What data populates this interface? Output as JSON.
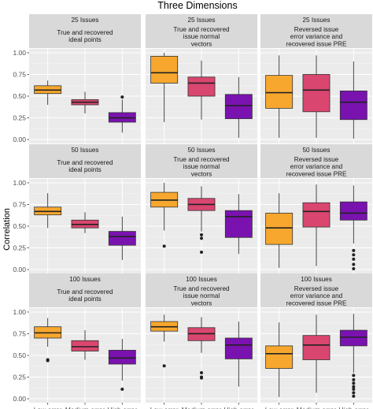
{
  "chart_data": {
    "type": "boxplot",
    "title": "Three Dimensions",
    "ylabel": "Correlation",
    "xlabel": "",
    "ylim": [
      0,
      1.0
    ],
    "y_ticks": [
      "0.00",
      "0.25",
      "0.50",
      "0.75",
      "1.00"
    ],
    "categories": [
      "Low error",
      "Medium error",
      "High error"
    ],
    "colors": [
      "#F7A72E",
      "#D9466F",
      "#7A12B0"
    ],
    "row_labels": [
      "25 Issues",
      "50 Issues",
      "100 Issues"
    ],
    "column_titles": [
      [
        "True and recovered",
        "ideal points"
      ],
      [
        "True and recovered",
        "issue normal",
        "vectors"
      ],
      [
        "Reversed issue",
        "error variance and",
        "recovered issue PRE"
      ]
    ],
    "panels": [
      {
        "row": "25 Issues",
        "column": 0,
        "boxes": [
          {
            "category": "Low error",
            "low": 0.4,
            "q1": 0.53,
            "median": 0.57,
            "q3": 0.62,
            "high": 0.68,
            "outliers": []
          },
          {
            "category": "Medium error",
            "low": 0.3,
            "q1": 0.4,
            "median": 0.43,
            "q3": 0.46,
            "high": 0.55,
            "outliers": []
          },
          {
            "category": "High error",
            "low": 0.08,
            "q1": 0.2,
            "median": 0.25,
            "q3": 0.31,
            "high": 0.46,
            "outliers": [
              0.49
            ]
          }
        ]
      },
      {
        "row": "25 Issues",
        "column": 1,
        "boxes": [
          {
            "category": "Low error",
            "low": 0.2,
            "q1": 0.65,
            "median": 0.77,
            "q3": 0.96,
            "high": 1.0,
            "outliers": []
          },
          {
            "category": "Medium error",
            "low": 0.23,
            "q1": 0.5,
            "median": 0.65,
            "q3": 0.72,
            "high": 0.91,
            "outliers": []
          },
          {
            "category": "High error",
            "low": 0.02,
            "q1": 0.24,
            "median": 0.39,
            "q3": 0.52,
            "high": 0.72,
            "outliers": []
          }
        ]
      },
      {
        "row": "25 Issues",
        "column": 2,
        "boxes": [
          {
            "category": "Low error",
            "low": 0.02,
            "q1": 0.36,
            "median": 0.54,
            "q3": 0.74,
            "high": 0.97,
            "outliers": []
          },
          {
            "category": "Medium error",
            "low": 0.02,
            "q1": 0.32,
            "median": 0.57,
            "q3": 0.75,
            "high": 0.97,
            "outliers": []
          },
          {
            "category": "High error",
            "low": 0.01,
            "q1": 0.23,
            "median": 0.43,
            "q3": 0.56,
            "high": 0.9,
            "outliers": []
          }
        ]
      },
      {
        "row": "50 Issues",
        "column": 0,
        "boxes": [
          {
            "category": "Low error",
            "low": 0.48,
            "q1": 0.63,
            "median": 0.67,
            "q3": 0.72,
            "high": 0.88,
            "outliers": []
          },
          {
            "category": "Medium error",
            "low": 0.42,
            "q1": 0.48,
            "median": 0.52,
            "q3": 0.57,
            "high": 0.66,
            "outliers": []
          },
          {
            "category": "High error",
            "low": 0.11,
            "q1": 0.28,
            "median": 0.38,
            "q3": 0.44,
            "high": 0.61,
            "outliers": []
          }
        ]
      },
      {
        "row": "50 Issues",
        "column": 1,
        "boxes": [
          {
            "category": "Low error",
            "low": 0.45,
            "q1": 0.72,
            "median": 0.8,
            "q3": 0.89,
            "high": 1.0,
            "outliers": [
              0.27
            ]
          },
          {
            "category": "Medium error",
            "low": 0.44,
            "q1": 0.68,
            "median": 0.75,
            "q3": 0.82,
            "high": 0.96,
            "outliers": [
              0.4,
              0.36,
              0.2
            ]
          },
          {
            "category": "High error",
            "low": 0.18,
            "q1": 0.37,
            "median": 0.61,
            "q3": 0.68,
            "high": 0.87,
            "outliers": []
          }
        ]
      },
      {
        "row": "50 Issues",
        "column": 2,
        "boxes": [
          {
            "category": "Low error",
            "low": 0.02,
            "q1": 0.29,
            "median": 0.48,
            "q3": 0.65,
            "high": 0.88,
            "outliers": []
          },
          {
            "category": "Medium error",
            "low": 0.04,
            "q1": 0.49,
            "median": 0.67,
            "q3": 0.77,
            "high": 0.98,
            "outliers": []
          },
          {
            "category": "High error",
            "low": 0.3,
            "q1": 0.57,
            "median": 0.65,
            "q3": 0.78,
            "high": 0.97,
            "outliers": [
              0.22,
              0.17,
              0.12,
              0.06,
              0.01
            ]
          }
        ]
      },
      {
        "row": "100 Issues",
        "column": 0,
        "boxes": [
          {
            "category": "Low error",
            "low": 0.6,
            "q1": 0.7,
            "median": 0.76,
            "q3": 0.83,
            "high": 0.93,
            "outliers": [
              0.45,
              0.44
            ]
          },
          {
            "category": "Medium error",
            "low": 0.45,
            "q1": 0.55,
            "median": 0.6,
            "q3": 0.67,
            "high": 0.79,
            "outliers": []
          },
          {
            "category": "High error",
            "low": 0.21,
            "q1": 0.4,
            "median": 0.47,
            "q3": 0.56,
            "high": 0.69,
            "outliers": [
              0.11
            ]
          }
        ]
      },
      {
        "row": "100 Issues",
        "column": 1,
        "boxes": [
          {
            "category": "Low error",
            "low": 0.66,
            "q1": 0.78,
            "median": 0.83,
            "q3": 0.89,
            "high": 0.97,
            "outliers": [
              0.38
            ]
          },
          {
            "category": "Medium error",
            "low": 0.53,
            "q1": 0.67,
            "median": 0.75,
            "q3": 0.82,
            "high": 0.94,
            "outliers": [
              0.3,
              0.25,
              0.24
            ]
          },
          {
            "category": "High error",
            "low": 0.14,
            "q1": 0.46,
            "median": 0.62,
            "q3": 0.7,
            "high": 0.89,
            "outliers": []
          }
        ]
      },
      {
        "row": "100 Issues",
        "column": 2,
        "boxes": [
          {
            "category": "Low error",
            "low": 0.02,
            "q1": 0.35,
            "median": 0.52,
            "q3": 0.61,
            "high": 0.88,
            "outliers": []
          },
          {
            "category": "Medium error",
            "low": 0.07,
            "q1": 0.45,
            "median": 0.62,
            "q3": 0.73,
            "high": 0.97,
            "outliers": []
          },
          {
            "category": "High error",
            "low": 0.3,
            "q1": 0.61,
            "median": 0.71,
            "q3": 0.79,
            "high": 0.98,
            "outliers": [
              0.27,
              0.22,
              0.18,
              0.14,
              0.11,
              0.07,
              0.03
            ]
          }
        ]
      }
    ]
  }
}
